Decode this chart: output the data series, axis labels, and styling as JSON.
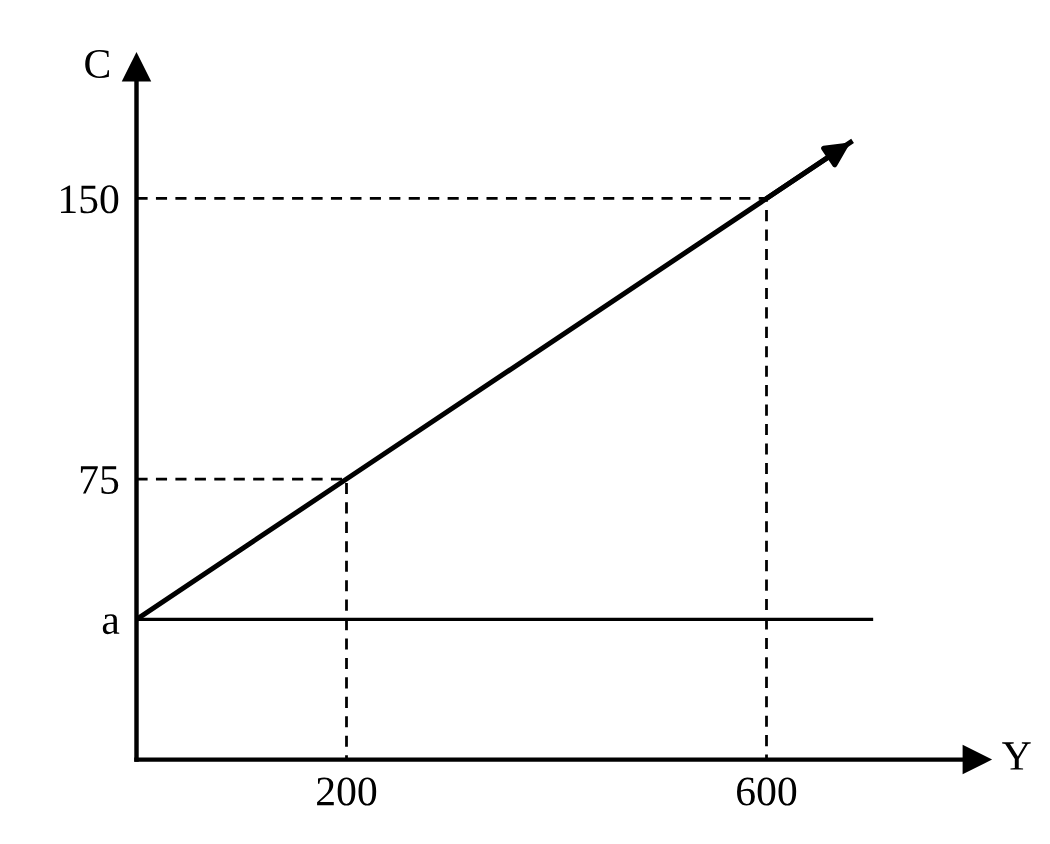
{
  "chart_data": {
    "type": "line",
    "xlabel": "Y",
    "ylabel": "C",
    "xlim": [
      0,
      800
    ],
    "ylim": [
      0,
      185
    ],
    "xticks": [
      200,
      600
    ],
    "yticks": [
      {
        "value": 37.5,
        "label": "a"
      },
      75,
      150
    ],
    "series": [
      {
        "color": "#000000",
        "x": [
          0,
          200,
          600,
          680
        ],
        "values": [
          37.5,
          75,
          150,
          165
        ],
        "line_style": "solid"
      },
      {
        "color": "#000000",
        "x": [
          0,
          700
        ],
        "values": [
          37.5,
          37.5
        ],
        "line_style": "solid"
      },
      {
        "color": "#000000",
        "x": [
          0,
          200,
          200
        ],
        "values": [
          75,
          75,
          0
        ],
        "line_style": "dashed"
      },
      {
        "color": "#000000",
        "x": [
          0,
          600,
          600
        ],
        "values": [
          150,
          150,
          0
        ],
        "line_style": "dashed"
      }
    ],
    "grid": false,
    "legend": false
  }
}
